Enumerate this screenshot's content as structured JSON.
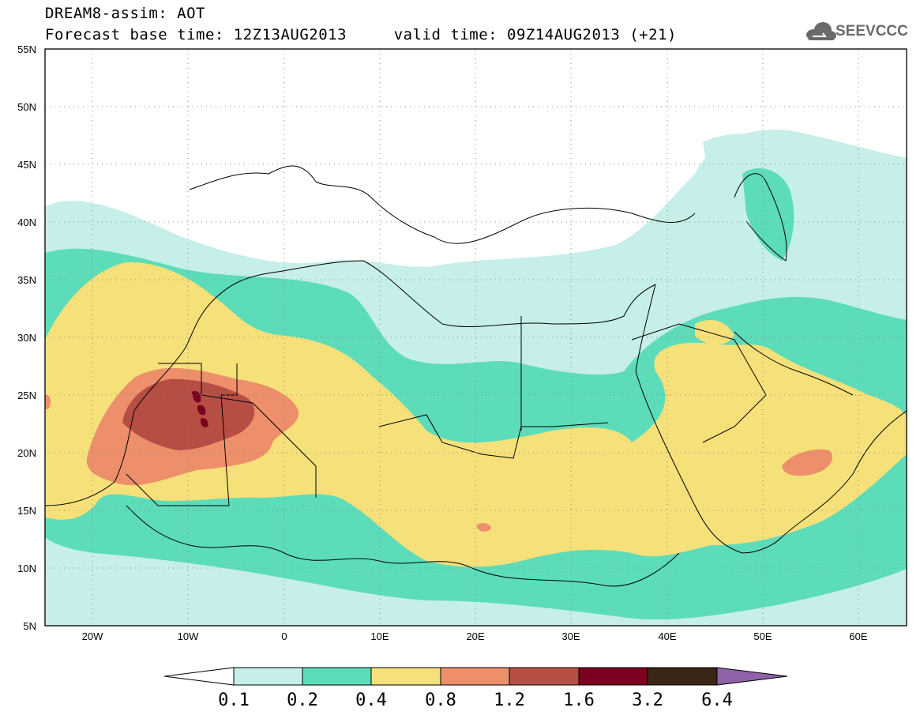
{
  "header": {
    "title_line1": "DREAM8-assim: AOT",
    "title_line2": "Forecast base time: 12Z13AUG2013     valid time: 09Z14AUG2013 (+21)"
  },
  "logo": {
    "text": "SEEVCCC",
    "icon": "cloud-icon"
  },
  "map": {
    "lon_range": [
      -25,
      65
    ],
    "lat_range": [
      5,
      55
    ],
    "grid": "dotted",
    "lat_ticks": [
      "55N",
      "50N",
      "45N",
      "40N",
      "35N",
      "30N",
      "25N",
      "20N",
      "15N",
      "10N",
      "5N"
    ],
    "lon_ticks": [
      "20W",
      "10W",
      "0",
      "10E",
      "20E",
      "30E",
      "40E",
      "50E",
      "60E"
    ]
  },
  "colorbar": {
    "labels": [
      "0.1",
      "0.2",
      "0.4",
      "0.8",
      "1.2",
      "1.6",
      "3.2",
      "6.4"
    ],
    "colors": [
      "#ffffff",
      "#c5efe8",
      "#5ddcba",
      "#f6e07a",
      "#ec8f6a",
      "#b64e44",
      "#7c0020",
      "#3a2616",
      "#8e63a9"
    ]
  },
  "colors": {
    "level_01": "#c5efe8",
    "level_02": "#5ddcba",
    "level_04": "#f6e07a",
    "level_08": "#ec8f6a",
    "level_12": "#b64e44",
    "level_16": "#7c0020"
  }
}
